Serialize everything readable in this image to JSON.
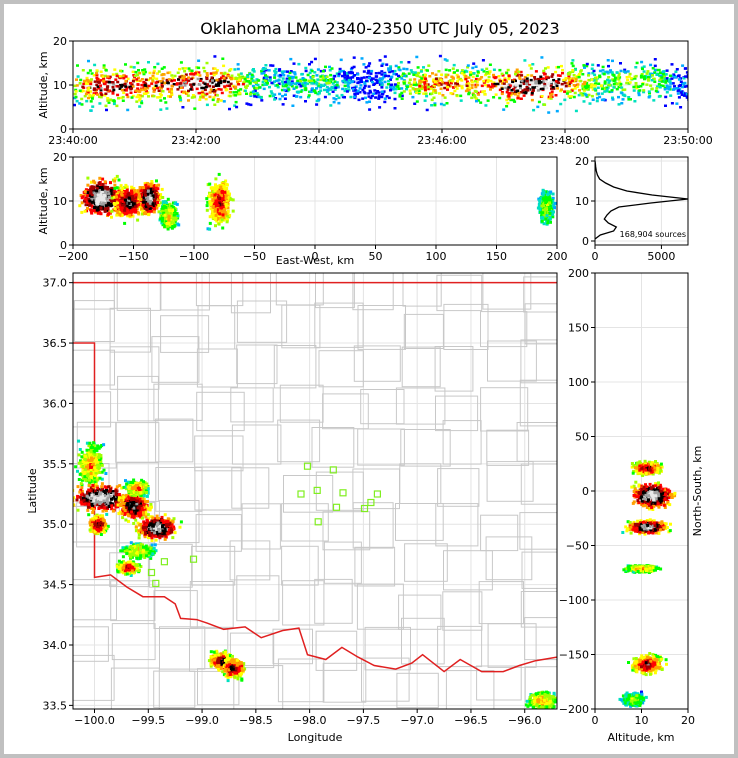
{
  "chart_data": [
    {
      "type": "heatmap",
      "panel": "time-altitude",
      "title": "Oklahoma LMA 2340-2350 UTC July 05, 2023",
      "ylabel": "Altitude, km",
      "xlabel": "",
      "x_tick_labels": [
        "23:40:00",
        "23:42:00",
        "23:44:00",
        "23:46:00",
        "23:48:00",
        "23:50:00"
      ],
      "ylim": [
        0,
        20
      ],
      "y_ticks": [
        0,
        10,
        20
      ],
      "bands": [
        {
          "x": [
            0,
            120,
            240,
            360,
            420,
            480,
            600
          ],
          "y": [
            10,
            10.5,
            11,
            10.5,
            10,
            10.5,
            11
          ]
        }
      ]
    },
    {
      "type": "heatmap",
      "panel": "east-west-altitude",
      "xlabel": "East-West, km",
      "ylabel": "Altitude, km",
      "xlim": [
        -200,
        200
      ],
      "ylim": [
        0,
        20
      ],
      "x_ticks": [
        -200,
        -150,
        -100,
        -50,
        0,
        50,
        100,
        150,
        200
      ],
      "y_ticks": [
        0,
        10,
        20
      ],
      "cells": [
        {
          "x": -178,
          "y": 11,
          "w": 28,
          "h": 7,
          "i": 1.0
        },
        {
          "x": -155,
          "y": 10,
          "w": 20,
          "h": 6,
          "i": 0.85
        },
        {
          "x": -138,
          "y": 11,
          "w": 15,
          "h": 6,
          "i": 0.95
        },
        {
          "x": -122,
          "y": 7,
          "w": 12,
          "h": 5,
          "i": 0.5
        },
        {
          "x": -80,
          "y": 10,
          "w": 16,
          "h": 9,
          "i": 0.7
        },
        {
          "x": 190,
          "y": 9,
          "w": 10,
          "h": 6,
          "i": 0.4
        }
      ]
    },
    {
      "type": "line",
      "panel": "altitude-histogram",
      "xlim": [
        0,
        7000
      ],
      "ylim": [
        0,
        20
      ],
      "x_ticks": [
        0,
        5000
      ],
      "y_ticks": [
        0,
        10,
        20
      ],
      "annotation": "168,904 sources",
      "points": [
        [
          0,
          0.5
        ],
        [
          400,
          1.5
        ],
        [
          1400,
          2.5
        ],
        [
          1600,
          3.5
        ],
        [
          1000,
          4.5
        ],
        [
          700,
          5.5
        ],
        [
          900,
          6.5
        ],
        [
          1200,
          7.5
        ],
        [
          1800,
          8.5
        ],
        [
          4200,
          9.5
        ],
        [
          7000,
          10.5
        ],
        [
          4300,
          11.5
        ],
        [
          2400,
          12.5
        ],
        [
          1400,
          13.5
        ],
        [
          800,
          14.5
        ],
        [
          350,
          15.5
        ],
        [
          180,
          16.5
        ],
        [
          100,
          17.5
        ],
        [
          50,
          18.5
        ],
        [
          20,
          19.5
        ],
        [
          0,
          20
        ]
      ]
    },
    {
      "type": "scatter",
      "panel": "plan-view",
      "xlabel": "Longitude",
      "ylabel": "Latitude",
      "xlim": [
        -100.2,
        -95.7
      ],
      "ylim": [
        33.47,
        37.08
      ],
      "x_ticks": [
        -100.0,
        -99.5,
        -99.0,
        -98.5,
        -98.0,
        -97.5,
        -97.0,
        -96.5,
        -96.0
      ],
      "x_tick_labels": [
        "−100.0",
        "−99.5",
        "−99.0",
        "−98.5",
        "−98.0",
        "−97.5",
        "−97.0",
        "−96.5",
        "−96.0"
      ],
      "y_ticks": [
        33.5,
        34.0,
        34.5,
        35.0,
        35.5,
        36.0,
        36.5,
        37.0
      ],
      "y_tick_labels": [
        "33.5",
        "34.0",
        "34.5",
        "35.0",
        "35.5",
        "36.0",
        "36.5",
        "37.0"
      ],
      "stations": [
        [
          -98.02,
          35.48
        ],
        [
          -97.78,
          35.45
        ],
        [
          -98.08,
          35.25
        ],
        [
          -97.93,
          35.28
        ],
        [
          -97.69,
          35.26
        ],
        [
          -97.37,
          35.25
        ],
        [
          -97.43,
          35.18
        ],
        [
          -97.75,
          35.14
        ],
        [
          -97.49,
          35.13
        ],
        [
          -97.92,
          35.02
        ],
        [
          -99.08,
          34.71
        ],
        [
          -99.35,
          34.69
        ],
        [
          -99.47,
          34.6
        ],
        [
          -99.43,
          34.51
        ]
      ],
      "cells": [
        {
          "lon": -100.05,
          "lat": 35.5,
          "rx": 0.1,
          "ry": 0.14,
          "i": 0.55
        },
        {
          "lon": -99.95,
          "lat": 35.23,
          "rx": 0.22,
          "ry": 0.09,
          "i": 1.0
        },
        {
          "lon": -99.65,
          "lat": 35.16,
          "rx": 0.12,
          "ry": 0.1,
          "i": 0.85
        },
        {
          "lon": -99.98,
          "lat": 35.01,
          "rx": 0.07,
          "ry": 0.06,
          "i": 0.8
        },
        {
          "lon": -99.62,
          "lat": 35.31,
          "rx": 0.08,
          "ry": 0.05,
          "i": 0.6
        },
        {
          "lon": -99.43,
          "lat": 34.98,
          "rx": 0.15,
          "ry": 0.08,
          "i": 0.95
        },
        {
          "lon": -99.6,
          "lat": 34.79,
          "rx": 0.12,
          "ry": 0.05,
          "i": 0.5
        },
        {
          "lon": -99.7,
          "lat": 34.65,
          "rx": 0.08,
          "ry": 0.04,
          "i": 0.75
        },
        {
          "lon": -98.83,
          "lat": 33.88,
          "rx": 0.09,
          "ry": 0.06,
          "i": 0.8
        },
        {
          "lon": -98.72,
          "lat": 33.82,
          "rx": 0.08,
          "ry": 0.07,
          "i": 0.8
        },
        {
          "lon": -95.85,
          "lat": 33.55,
          "rx": 0.12,
          "ry": 0.06,
          "i": 0.55
        }
      ],
      "red_border": [
        [
          -100.2,
          37.0
        ],
        [
          -95.7,
          37.0
        ],
        [
          -100.2,
          36.5
        ],
        [
          -100.0,
          36.5
        ],
        [
          -100.0,
          34.56
        ],
        [
          -99.85,
          34.58
        ],
        [
          -99.7,
          34.48
        ],
        [
          -99.55,
          34.4
        ],
        [
          -99.35,
          34.4
        ],
        [
          -99.25,
          34.34
        ],
        [
          -99.2,
          34.22
        ],
        [
          -99.05,
          34.21
        ],
        [
          -98.95,
          34.18
        ],
        [
          -98.8,
          34.13
        ],
        [
          -98.6,
          34.15
        ],
        [
          -98.45,
          34.06
        ],
        [
          -98.25,
          34.12
        ],
        [
          -98.1,
          34.14
        ],
        [
          -98.02,
          33.92
        ],
        [
          -97.85,
          33.88
        ],
        [
          -97.7,
          33.98
        ],
        [
          -97.55,
          33.9
        ],
        [
          -97.4,
          33.83
        ],
        [
          -97.2,
          33.8
        ],
        [
          -97.05,
          33.85
        ],
        [
          -96.95,
          33.92
        ],
        [
          -96.75,
          33.78
        ],
        [
          -96.6,
          33.88
        ],
        [
          -96.4,
          33.78
        ],
        [
          -96.2,
          33.78
        ],
        [
          -96.05,
          33.83
        ],
        [
          -95.9,
          33.87
        ],
        [
          -95.7,
          33.9
        ]
      ]
    },
    {
      "type": "heatmap",
      "panel": "altitude-north-south",
      "xlabel": "Altitude, km",
      "ylabel": "North-South, km",
      "xlim": [
        0,
        20
      ],
      "ylim": [
        -200,
        200
      ],
      "x_ticks": [
        0,
        10,
        20
      ],
      "y_ticks": [
        -200,
        -150,
        -100,
        -50,
        0,
        50,
        100,
        150,
        200
      ],
      "cells": [
        {
          "x": 11,
          "y": 22,
          "w": 5,
          "h": 10,
          "i": 0.75
        },
        {
          "x": 12,
          "y": -3,
          "w": 7,
          "h": 18,
          "i": 1.0
        },
        {
          "x": 11,
          "y": -32,
          "w": 7,
          "h": 10,
          "i": 0.95
        },
        {
          "x": 10,
          "y": -70,
          "w": 6,
          "h": 5,
          "i": 0.55
        },
        {
          "x": 11,
          "y": -158,
          "w": 6,
          "h": 14,
          "i": 0.75
        },
        {
          "x": 8,
          "y": -190,
          "w": 4,
          "h": 10,
          "i": 0.4
        }
      ]
    }
  ],
  "colors": {
    "frame_bg": "#c0c0c0",
    "border_line": "#e02020",
    "county_line": "#c8c8c8",
    "station": "#80ee20"
  }
}
